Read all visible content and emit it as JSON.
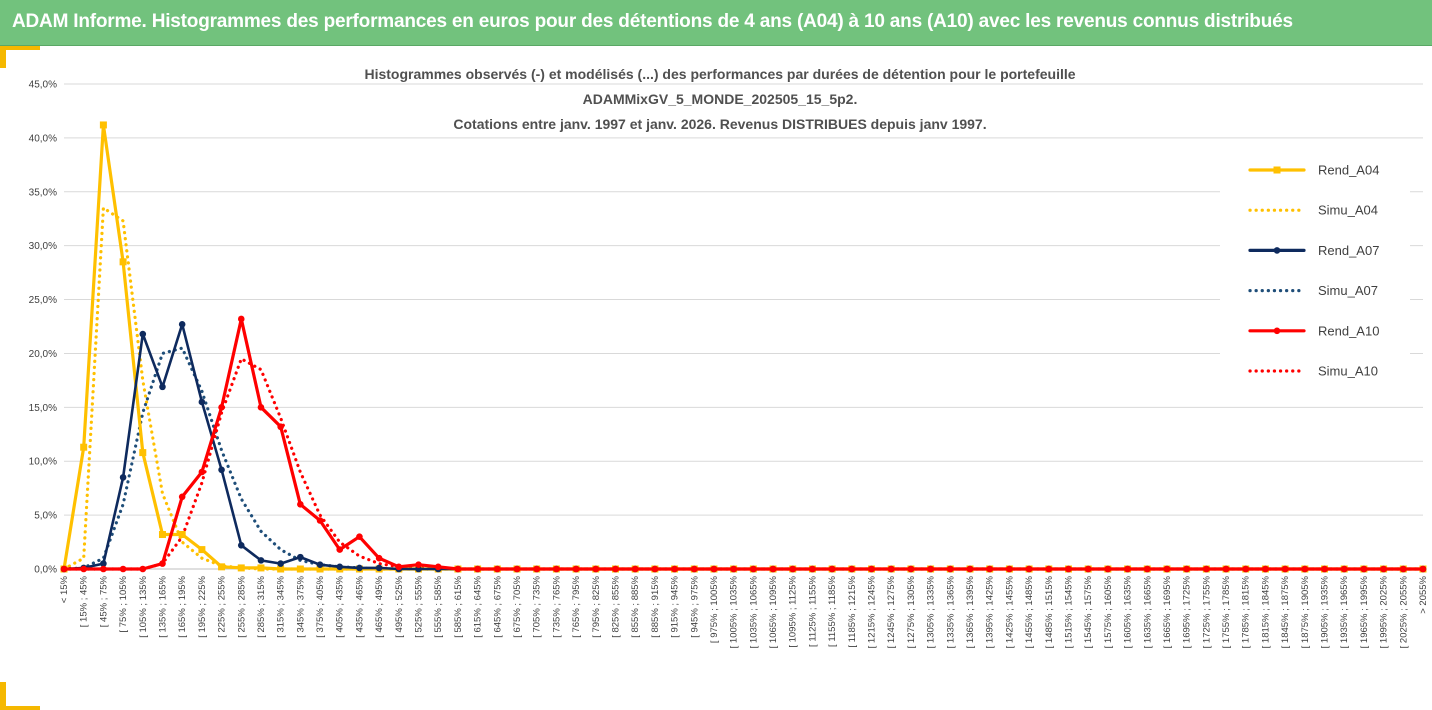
{
  "banner": {
    "title": "ADAM Informe. Histogrammes des performances en euros pour des détentions de 4 ans (A04) à 10 ans (A10) avec les revenus connus distribués"
  },
  "colors": {
    "banner": "#72c27d",
    "accent": "#f5b800",
    "A04": "#ffc000",
    "A07": "#0e2a5e",
    "A07_dotted": "#1f4e79",
    "A10": "#ff0000",
    "grid": "#d9d9d9"
  },
  "chart_data": {
    "type": "line",
    "title": [
      "Histogrammes observés (-) et modélisés (...) des performances par durées de détention pour le portefeuille",
      "ADAMMixGV_5_MONDE_202505_15_5p2.",
      "Cotations entre janv. 1997 et janv. 2026. Revenus DISTRIBUES depuis janv 1997."
    ],
    "ylim": [
      0,
      45
    ],
    "yticks": [
      "0,0%",
      "5,0%",
      "10,0%",
      "15,0%",
      "20,0%",
      "25,0%",
      "30,0%",
      "35,0%",
      "40,0%",
      "45,0%"
    ],
    "grid": "horizontal",
    "legend_position": "right",
    "categories": [
      "< 15%",
      "[ 15% ; 45%",
      "[ 45% ; 75%",
      "[ 75% ; 105%",
      "[ 105% ; 135%",
      "[ 135% ; 165%",
      "[ 165% ; 195%",
      "[ 195% ; 225%",
      "[ 225% ; 255%",
      "[ 255% ; 285%",
      "[ 285% ; 315%",
      "[ 315% ; 345%",
      "[ 345% ; 375%",
      "[ 375% ; 405%",
      "[ 405% ; 435%",
      "[ 435% ; 465%",
      "[ 465% ; 495%",
      "[ 495% ; 525%",
      "[ 525% ; 555%",
      "[ 555% ; 585%",
      "[ 585% ; 615%",
      "[ 615% ; 645%",
      "[ 645% ; 675%",
      "[ 675% ; 705%",
      "[ 705% ; 735%",
      "[ 735% ; 765%",
      "[ 765% ; 795%",
      "[ 795% ; 825%",
      "[ 825% ; 855%",
      "[ 855% ; 885%",
      "[ 885% ; 915%",
      "[ 915% ; 945%",
      "[ 945% ; 975%",
      "[ 975% ; 1005%",
      "[ 1005% ; 1035%",
      "[ 1035% ; 1065%",
      "[ 1065% ; 1095%",
      "[ 1095% ; 1125%",
      "[ 1125% ; 1155%",
      "[ 1155% ; 1185%",
      "[ 1185% ; 1215%",
      "[ 1215% ; 1245%",
      "[ 1245% ; 1275%",
      "[ 1275% ; 1305%",
      "[ 1305% ; 1335%",
      "[ 1335% ; 1365%",
      "[ 1365% ; 1395%",
      "[ 1395% ; 1425%",
      "[ 1425% ; 1455%",
      "[ 1455% ; 1485%",
      "[ 1485% ; 1515%",
      "[ 1515% ; 1545%",
      "[ 1545% ; 1575%",
      "[ 1575% ; 1605%",
      "[ 1605% ; 1635%",
      "[ 1635% ; 1665%",
      "[ 1665% ; 1695%",
      "[ 1695% ; 1725%",
      "[ 1725% ; 1755%",
      "[ 1755% ; 1785%",
      "[ 1785% ; 1815%",
      "[ 1815% ; 1845%",
      "[ 1845% ; 1875%",
      "[ 1875% ; 1905%",
      "[ 1905% ; 1935%",
      "[ 1935% ; 1965%",
      "[ 1965% ; 1995%",
      "[ 1995% ; 2025%",
      "[ 2025% ; 2055%",
      "> 2055%"
    ],
    "series": [
      {
        "name": "Rend_A04",
        "style": "solid",
        "marker": "square",
        "color": "#ffc000",
        "values": [
          0.0,
          11.3,
          41.2,
          28.5,
          10.8,
          3.2,
          3.2,
          1.8,
          0.2,
          0.1,
          0.1,
          0,
          0,
          0,
          0,
          0,
          0,
          0,
          0,
          0,
          0,
          0,
          0,
          0,
          0,
          0,
          0,
          0,
          0,
          0,
          0,
          0,
          0,
          0,
          0,
          0,
          0,
          0,
          0,
          0,
          0,
          0,
          0,
          0,
          0,
          0,
          0,
          0,
          0,
          0,
          0,
          0,
          0,
          0,
          0,
          0,
          0,
          0,
          0,
          0,
          0,
          0,
          0,
          0,
          0,
          0,
          0,
          0,
          0,
          0
        ]
      },
      {
        "name": "Simu_A04",
        "style": "dotted",
        "marker": "none",
        "color": "#ffc000",
        "values": [
          0.0,
          1.0,
          33.5,
          32.3,
          17.5,
          7.0,
          2.5,
          1.0,
          0.3,
          0.1,
          0,
          0,
          0,
          0,
          0,
          0,
          0,
          0,
          0,
          0,
          0,
          0,
          0,
          0,
          0,
          0,
          0,
          0,
          0,
          0,
          0,
          0,
          0,
          0,
          0,
          0,
          0,
          0,
          0,
          0,
          0,
          0,
          0,
          0,
          0,
          0,
          0,
          0,
          0,
          0,
          0,
          0,
          0,
          0,
          0,
          0,
          0,
          0,
          0,
          0,
          0,
          0,
          0,
          0,
          0,
          0,
          0,
          0,
          0,
          0
        ]
      },
      {
        "name": "Rend_A07",
        "style": "solid",
        "marker": "circle",
        "color": "#0e2a5e",
        "values": [
          0.0,
          0.1,
          0.5,
          8.5,
          21.8,
          16.9,
          22.7,
          15.5,
          9.2,
          2.2,
          0.8,
          0.5,
          1.1,
          0.4,
          0.2,
          0.1,
          0.1,
          0,
          0,
          0,
          0,
          0,
          0,
          0,
          0,
          0,
          0,
          0,
          0,
          0,
          0,
          0,
          0,
          0,
          0,
          0,
          0,
          0,
          0,
          0,
          0,
          0,
          0,
          0,
          0,
          0,
          0,
          0,
          0,
          0,
          0,
          0,
          0,
          0,
          0,
          0,
          0,
          0,
          0,
          0,
          0,
          0,
          0,
          0,
          0,
          0,
          0,
          0,
          0,
          0
        ]
      },
      {
        "name": "Simu_A07",
        "style": "dotted",
        "marker": "none",
        "color": "#1f4e79",
        "values": [
          0.0,
          0.1,
          1.0,
          6.0,
          14.5,
          20.0,
          20.5,
          16.5,
          11.0,
          6.5,
          3.5,
          1.8,
          0.8,
          0.4,
          0.2,
          0.1,
          0,
          0,
          0,
          0,
          0,
          0,
          0,
          0,
          0,
          0,
          0,
          0,
          0,
          0,
          0,
          0,
          0,
          0,
          0,
          0,
          0,
          0,
          0,
          0,
          0,
          0,
          0,
          0,
          0,
          0,
          0,
          0,
          0,
          0,
          0,
          0,
          0,
          0,
          0,
          0,
          0,
          0,
          0,
          0,
          0,
          0,
          0,
          0,
          0,
          0,
          0,
          0,
          0,
          0
        ]
      },
      {
        "name": "Rend_A10",
        "style": "solid",
        "marker": "circle",
        "color": "#ff0000",
        "values": [
          0.0,
          0.0,
          0.0,
          0.0,
          0.0,
          0.5,
          6.7,
          9.0,
          15.0,
          23.2,
          15.0,
          13.2,
          6.0,
          4.5,
          1.8,
          3.0,
          1.0,
          0.2,
          0.4,
          0.2,
          0,
          0,
          0,
          0,
          0,
          0,
          0,
          0,
          0,
          0,
          0,
          0,
          0,
          0,
          0,
          0,
          0,
          0,
          0,
          0,
          0,
          0,
          0,
          0,
          0,
          0,
          0,
          0,
          0,
          0,
          0,
          0,
          0,
          0,
          0,
          0,
          0,
          0,
          0,
          0,
          0,
          0,
          0,
          0,
          0,
          0,
          0,
          0,
          0,
          0
        ]
      },
      {
        "name": "Simu_A10",
        "style": "dotted",
        "marker": "none",
        "color": "#ff0000",
        "values": [
          0.0,
          0.0,
          0.0,
          0.0,
          0.0,
          0.5,
          3.0,
          8.0,
          14.5,
          19.5,
          18.5,
          14.0,
          9.0,
          5.0,
          2.5,
          1.2,
          0.5,
          0.2,
          0.1,
          0,
          0,
          0,
          0,
          0,
          0,
          0,
          0,
          0,
          0,
          0,
          0,
          0,
          0,
          0,
          0,
          0,
          0,
          0,
          0,
          0,
          0,
          0,
          0,
          0,
          0,
          0,
          0,
          0,
          0,
          0,
          0,
          0,
          0,
          0,
          0,
          0,
          0,
          0,
          0,
          0,
          0,
          0,
          0,
          0,
          0,
          0,
          0,
          0,
          0,
          0
        ]
      }
    ]
  }
}
